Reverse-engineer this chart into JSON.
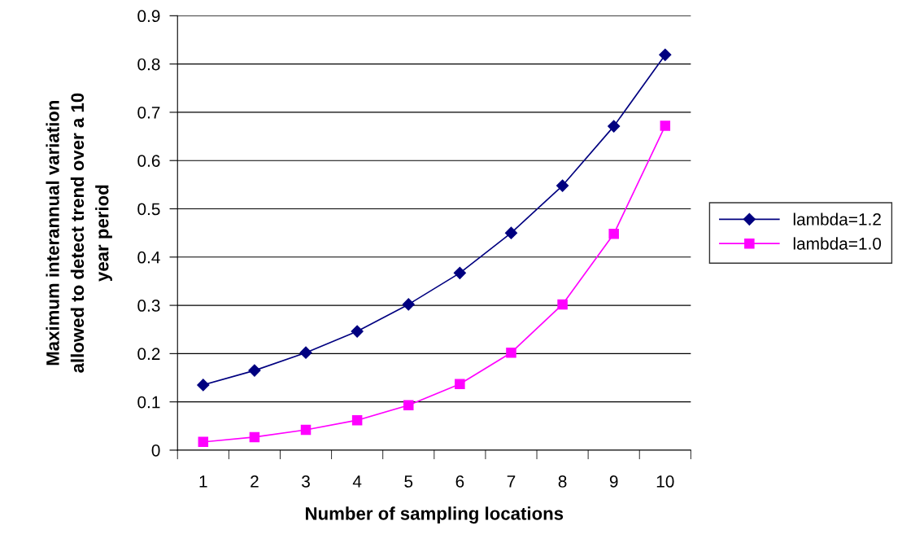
{
  "chart_data": {
    "type": "line",
    "xlabel": "Number of sampling locations",
    "ylabel": "Maximum interannual variation\nallowed to detect trend over a 10\nyear period",
    "categories": [
      "1",
      "2",
      "3",
      "4",
      "5",
      "6",
      "7",
      "8",
      "9",
      "10"
    ],
    "series": [
      {
        "name": "lambda=1.2",
        "color": "#000080",
        "marker": "diamond",
        "values": [
          0.135,
          0.165,
          0.202,
          0.246,
          0.302,
          0.367,
          0.45,
          0.548,
          0.671,
          0.819
        ]
      },
      {
        "name": "lambda=1.0",
        "color": "#ff00ff",
        "marker": "square",
        "values": [
          0.017,
          0.027,
          0.042,
          0.062,
          0.093,
          0.137,
          0.202,
          0.302,
          0.448,
          0.672
        ]
      }
    ],
    "ylim": [
      0,
      0.9
    ],
    "yticks": [
      0,
      0.1,
      0.2,
      0.3,
      0.4,
      0.5,
      0.6,
      0.7,
      0.8,
      0.9
    ],
    "grid": "y",
    "legend": "right",
    "line_style": "solid"
  }
}
